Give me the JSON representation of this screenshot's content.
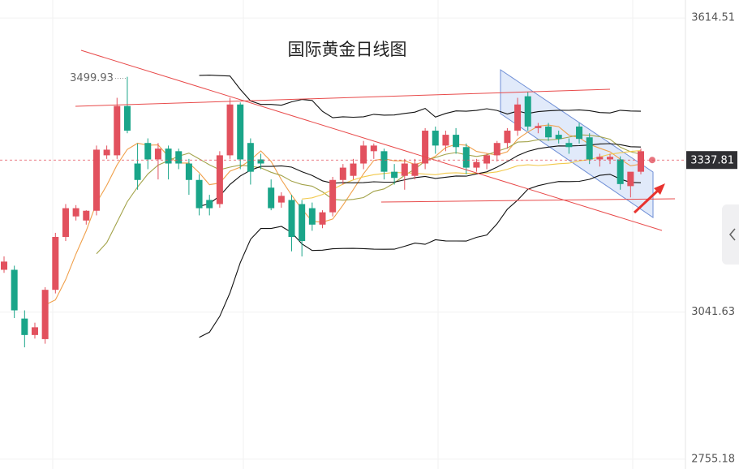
{
  "chart_data": {
    "type": "candlestick",
    "title": "国际黄金日线图",
    "ylim": [
      2736,
      3649.5
    ],
    "yticks": [
      {
        "value": 3614.51,
        "label": "3614.51"
      },
      {
        "value": 3041.63,
        "label": "3041.63"
      },
      {
        "value": 2755.18,
        "label": "2755.18"
      }
    ],
    "grid": true,
    "up_color": "#e2515e",
    "down_color": "#1aa589",
    "last_price": 3337.81,
    "ohlc": [
      [
        3124,
        3150,
        3118,
        3140
      ],
      [
        3124,
        3132,
        3030,
        3045
      ],
      [
        3029,
        3045,
        2973,
        2997
      ],
      [
        2997,
        3021,
        2990,
        3012
      ],
      [
        2989,
        3090,
        2980,
        3085
      ],
      [
        3085,
        3196,
        3078,
        3188
      ],
      [
        3188,
        3252,
        3180,
        3244
      ],
      [
        3228,
        3250,
        3220,
        3244
      ],
      [
        3220,
        3240,
        3212,
        3239
      ],
      [
        3239,
        3366,
        3230,
        3358
      ],
      [
        3347,
        3366,
        3340,
        3358
      ],
      [
        3347,
        3459,
        3340,
        3443
      ],
      [
        3443,
        3499.93,
        3390,
        3395
      ],
      [
        3331,
        3370,
        3280,
        3299
      ],
      [
        3371,
        3380,
        3320,
        3339
      ],
      [
        3339,
        3371,
        3300,
        3360
      ],
      [
        3360,
        3366,
        3300,
        3331
      ],
      [
        3355,
        3360,
        3320,
        3331
      ],
      [
        3331,
        3340,
        3270,
        3299
      ],
      [
        3299,
        3310,
        3230,
        3244
      ],
      [
        3260,
        3270,
        3230,
        3244
      ],
      [
        3252,
        3355,
        3245,
        3347
      ],
      [
        3347,
        3459,
        3340,
        3446
      ],
      [
        3446,
        3450,
        3320,
        3339
      ],
      [
        3371,
        3380,
        3290,
        3315
      ],
      [
        3339,
        3350,
        3320,
        3331
      ],
      [
        3284,
        3300,
        3240,
        3244
      ],
      [
        3255,
        3275,
        3245,
        3268
      ],
      [
        3260,
        3270,
        3160,
        3188
      ],
      [
        3252,
        3260,
        3150,
        3180
      ],
      [
        3244,
        3255,
        3200,
        3212
      ],
      [
        3212,
        3240,
        3205,
        3236
      ],
      [
        3236,
        3305,
        3228,
        3299
      ],
      [
        3299,
        3330,
        3290,
        3323
      ],
      [
        3307,
        3340,
        3300,
        3331
      ],
      [
        3331,
        3375,
        3320,
        3366
      ],
      [
        3355,
        3370,
        3340,
        3366
      ],
      [
        3355,
        3360,
        3300,
        3315
      ],
      [
        3315,
        3330,
        3290,
        3303
      ],
      [
        3307,
        3340,
        3280,
        3331
      ],
      [
        3307,
        3340,
        3300,
        3331
      ],
      [
        3331,
        3400,
        3320,
        3395
      ],
      [
        3395,
        3403,
        3350,
        3366
      ],
      [
        3366,
        3395,
        3355,
        3387
      ],
      [
        3387,
        3400,
        3350,
        3363
      ],
      [
        3363,
        3370,
        3310,
        3323
      ],
      [
        3323,
        3340,
        3315,
        3334
      ],
      [
        3331,
        3350,
        3320,
        3347
      ],
      [
        3347,
        3375,
        3335,
        3371
      ],
      [
        3371,
        3400,
        3360,
        3395
      ],
      [
        3395,
        3459,
        3385,
        3446
      ],
      [
        3462,
        3470,
        3395,
        3403
      ],
      [
        3400,
        3410,
        3390,
        3404
      ],
      [
        3403,
        3410,
        3375,
        3382
      ],
      [
        3387,
        3395,
        3370,
        3379
      ],
      [
        3371,
        3380,
        3350,
        3363
      ],
      [
        3403,
        3410,
        3370,
        3379
      ],
      [
        3382,
        3390,
        3330,
        3339
      ],
      [
        3339,
        3350,
        3325,
        3344
      ],
      [
        3339,
        3350,
        3330,
        3344
      ],
      [
        3339,
        3345,
        3280,
        3291
      ],
      [
        3287,
        3310,
        3265,
        3315
      ],
      [
        3315,
        3360,
        3310,
        3355
      ]
    ]
  }
}
